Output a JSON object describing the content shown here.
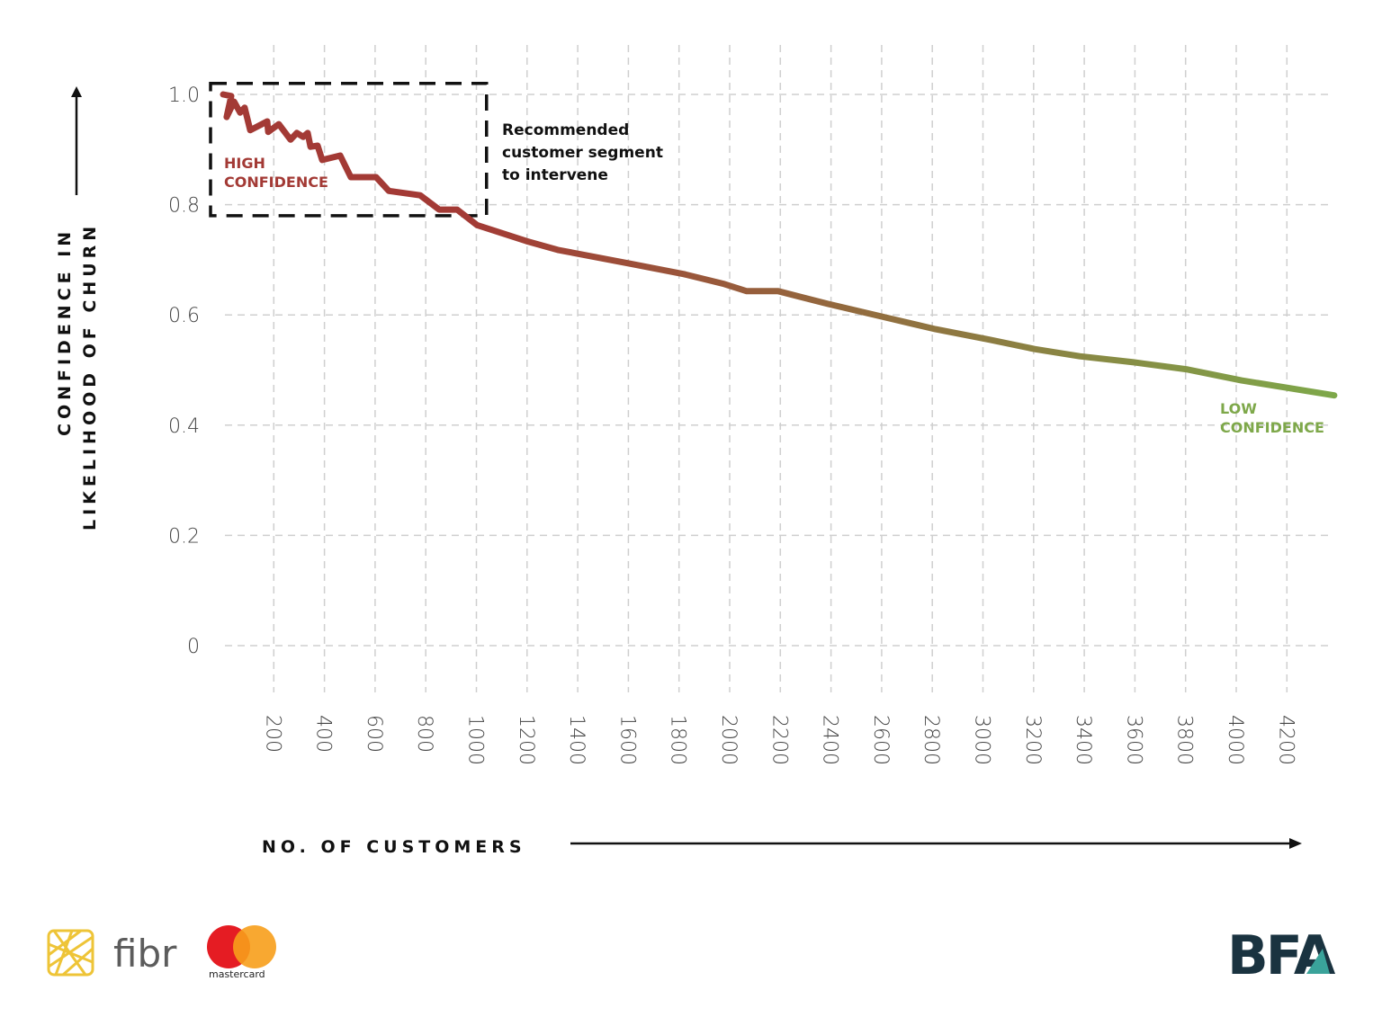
{
  "chart_data": {
    "type": "line",
    "title": "",
    "xlabel": "NO. OF CUSTOMERS",
    "ylabel": [
      "CONFIDENCE IN",
      "LIKELIHOOD OF CHURN"
    ],
    "xlim": [
      0,
      4400
    ],
    "ylim": [
      0,
      1.0
    ],
    "grid": true,
    "x_ticks": [
      "200",
      "400",
      "600",
      "800",
      "1000",
      "1200",
      "1400",
      "1600",
      "1800",
      "2000",
      "2200",
      "2400",
      "2600",
      "2800",
      "3000",
      "3200",
      "3400",
      "3600",
      "3800",
      "4000",
      "4200"
    ],
    "y_ticks": [
      "0",
      "0.2",
      "0.4",
      "0.6",
      "0.8",
      "1.0"
    ],
    "series": [
      {
        "color_start": "#a33a35",
        "color_end": "#7ea84a",
        "x": [
          0,
          32,
          14,
          43,
          67,
          85,
          107,
          174,
          178,
          220,
          266,
          291,
          316,
          334,
          345,
          373,
          391,
          462,
          504,
          604,
          654,
          778,
          853,
          924,
          1002,
          1197,
          1321,
          1606,
          1819,
          1979,
          2067,
          2192,
          2387,
          2600,
          2813,
          3027,
          3204,
          3382,
          3595,
          3808,
          4021,
          4387
        ],
        "y": [
          1.0,
          0.997,
          0.959,
          0.987,
          0.967,
          0.976,
          0.935,
          0.951,
          0.932,
          0.946,
          0.918,
          0.93,
          0.923,
          0.93,
          0.905,
          0.907,
          0.881,
          0.889,
          0.85,
          0.85,
          0.825,
          0.817,
          0.791,
          0.791,
          0.763,
          0.734,
          0.718,
          0.693,
          0.674,
          0.656,
          0.643,
          0.643,
          0.62,
          0.597,
          0.574,
          0.555,
          0.538,
          0.525,
          0.514,
          0.501,
          0.481,
          0.454
        ]
      }
    ],
    "annotations": {
      "high": [
        "HIGH",
        "CONFIDENCE"
      ],
      "high_color": "#a33a35",
      "low": [
        "LOW",
        "CONFIDENCE"
      ],
      "low_color": "#7ea84a",
      "box_text": [
        "Recommended",
        "customer segment",
        "to intervene"
      ],
      "box_x_range": [
        0,
        1040
      ],
      "box_y_range": [
        0.78,
        1.02
      ]
    }
  },
  "logos": {
    "fibr": "fibr",
    "mastercard": "mastercard",
    "bfa": "BFA"
  }
}
